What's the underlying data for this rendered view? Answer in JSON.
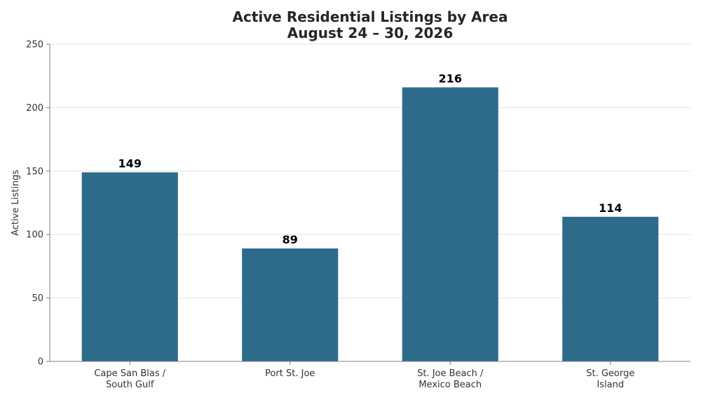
{
  "chart_data": {
    "type": "bar",
    "title": "Active Residential Listings by Area",
    "subtitle": "August 24 – 30, 2026",
    "xlabel": "",
    "ylabel": "Active Listings",
    "categories": [
      [
        "Cape San Blas /",
        "South Gulf"
      ],
      [
        "Port St. Joe"
      ],
      [
        "St. Joe Beach /",
        "Mexico Beach"
      ],
      [
        "St. George",
        "Island"
      ]
    ],
    "values": [
      149,
      89,
      216,
      114
    ],
    "ylim": [
      0,
      250
    ],
    "yticks": [
      0,
      50,
      100,
      150,
      200,
      250
    ],
    "grid": "horizontal",
    "bar_color": "#2e6b8a",
    "data_labels": true
  }
}
